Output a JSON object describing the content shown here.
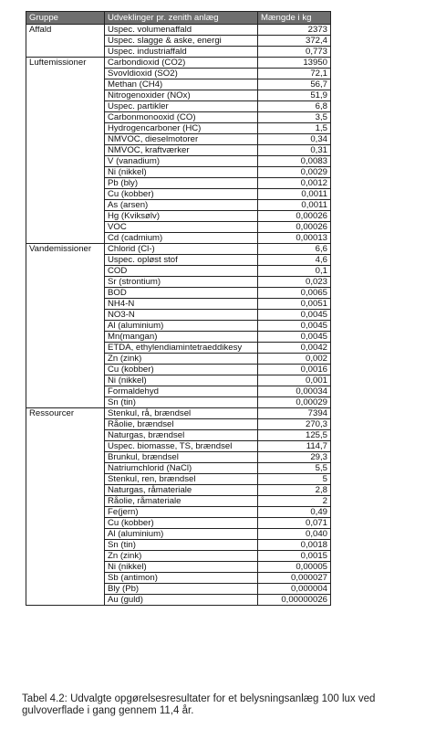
{
  "table": {
    "headers": [
      "Gruppe",
      "Udveklinger pr. zenith anlæg",
      "Mængde i kg"
    ],
    "groups": [
      {
        "name": "Affald",
        "rows": [
          [
            "Uspec. volumenaffald",
            "2373"
          ],
          [
            "Uspec. slagge & aske, energi",
            "372,4"
          ],
          [
            "Uspec. industriaffald",
            "0,773"
          ]
        ]
      },
      {
        "name": "Luftemissioner",
        "rows": [
          [
            "Carbondioxid (CO2)",
            "13950"
          ],
          [
            "Svovldioxid (SO2)",
            "72,1"
          ],
          [
            "Methan (CH4)",
            "56,7"
          ],
          [
            "Nitrogenoxider (NOx)",
            "51,9"
          ],
          [
            "Uspec. partikler",
            "6,8"
          ],
          [
            "Carbonmonooxid (CO)",
            "3,5"
          ],
          [
            "Hydrogencarboner (HC)",
            "1,5"
          ],
          [
            "NMVOC, dieselmotorer",
            "0,34"
          ],
          [
            "NMVOC, kraftværker",
            "0,31"
          ],
          [
            "V (vanadium)",
            "0,0083"
          ],
          [
            "Ni (nikkel)",
            "0,0029"
          ],
          [
            "Pb (bly)",
            "0,0012"
          ],
          [
            "Cu (kobber)",
            "0,0011"
          ],
          [
            "As (arsen)",
            "0,0011"
          ],
          [
            "Hg (Kviksølv)",
            "0,00026"
          ],
          [
            "VOC",
            "0,00026"
          ],
          [
            "Cd (cadmium)",
            "0,00013"
          ]
        ]
      },
      {
        "name": "Vandemissioner",
        "rows": [
          [
            "Chlorid (Cl-)",
            "6,6"
          ],
          [
            "Uspec. opløst stof",
            "4,6"
          ],
          [
            "COD",
            "0,1"
          ],
          [
            "Sr (strontium)",
            "0,023"
          ],
          [
            "BOD",
            "0,0065"
          ],
          [
            "NH4-N",
            "0,0051"
          ],
          [
            "NO3-N",
            "0,0045"
          ],
          [
            "Al (aluminium)",
            "0,0045"
          ],
          [
            "Mn(mangan)",
            "0,0045"
          ],
          [
            "ETDA, ethylendiamintetraeddikesy",
            "0,0042"
          ],
          [
            "Zn (zink)",
            "0,002"
          ],
          [
            "Cu (kobber)",
            "0,0016"
          ],
          [
            "Ni (nikkel)",
            "0,001"
          ],
          [
            "Formaldehyd",
            "0,00034"
          ],
          [
            "Sn (tin)",
            "0,00029"
          ]
        ]
      },
      {
        "name": "Ressourcer",
        "rows": [
          [
            "Stenkul, rå, brændsel",
            "7394"
          ],
          [
            "Råolie, brændsel",
            "270,3"
          ],
          [
            "Naturgas, brændsel",
            "125,5"
          ],
          [
            "Uspec. biomasse, TS, brændsel",
            "114,7"
          ],
          [
            "Brunkul, brændsel",
            "29,3"
          ],
          [
            "Natriumchlorid (NaCl)",
            "5,5"
          ],
          [
            "Stenkul, ren, brændsel",
            "5"
          ],
          [
            "Naturgas, råmateriale",
            "2,8"
          ],
          [
            "Råolie, råmateriale",
            "2"
          ],
          [
            "Fe(jern)",
            "0,49"
          ],
          [
            "Cu (kobber)",
            "0,071"
          ],
          [
            "Al (aluminium)",
            "0,040"
          ],
          [
            "Sn (tin)",
            "0,0018"
          ],
          [
            "Zn (zink)",
            "0,0015"
          ],
          [
            "Ni (nikkel)",
            "0,00005"
          ],
          [
            "Sb (antimon)",
            "0,000027"
          ],
          [
            "Bly (Pb)",
            "0,000004"
          ],
          [
            "Au (guld)",
            "0,00000026"
          ]
        ]
      }
    ]
  },
  "caption": "Tabel 4.2: Udvalgte opgørelsesresultater for et belysningsanlæg 100 lux ved gulvoverflade i gang gennem 11,4 år."
}
